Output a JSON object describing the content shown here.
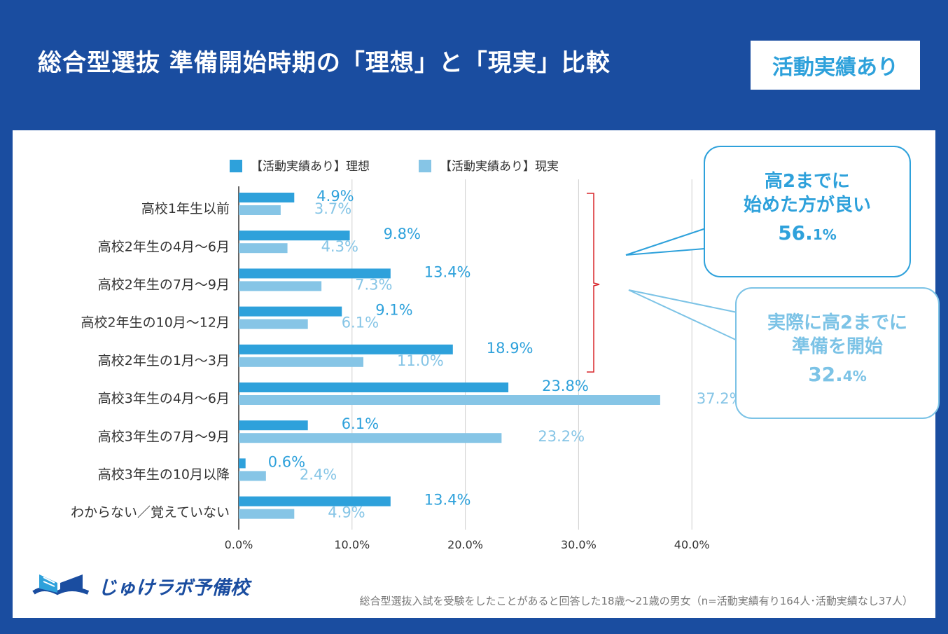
{
  "header": {
    "title": "総合型選抜 準備開始時期の「理想」と「現実」比較",
    "badge": "活動実績あり"
  },
  "chart_data": {
    "type": "bar",
    "orientation": "horizontal",
    "categories": [
      "高校1年生以前",
      "高校2年生の4月〜6月",
      "高校2年生の7月〜9月",
      "高校2年生の10月〜12月",
      "高校2年生の1月〜3月",
      "高校3年生の4月〜6月",
      "高校3年生の7月〜9月",
      "高校3年生の10月以降",
      "わからない／覚えていない"
    ],
    "series": [
      {
        "name": "【活動実績あり】理想",
        "color": "#2ea1db",
        "values": [
          4.9,
          9.8,
          13.4,
          9.1,
          18.9,
          23.8,
          6.1,
          0.6,
          13.4
        ]
      },
      {
        "name": "【活動実績あり】現実",
        "color": "#86c5e6",
        "values": [
          3.7,
          4.3,
          7.3,
          6.1,
          11.0,
          37.2,
          23.2,
          2.4,
          4.9
        ]
      }
    ],
    "xlim": [
      0,
      40
    ],
    "xticks": [
      "0.0%",
      "10.0%",
      "20.0%",
      "30.0%",
      "40.0%"
    ],
    "grid": true,
    "legend_position": "top"
  },
  "callouts": {
    "ideal": {
      "line1": "高2までに",
      "line2": "始めた方が良い",
      "value": "56.",
      "value_small": "1%"
    },
    "actual": {
      "line1": "実際に高2までに",
      "line2": "準備を開始",
      "value": "32.",
      "value_small": "4%"
    }
  },
  "logo": {
    "text": "じゅけラボ予備校"
  },
  "note": "総合型選抜入試を受験をしたことがあると回答した18歳〜21歳の男女（n=活動実績有り164人･活動実績なし37人）"
}
